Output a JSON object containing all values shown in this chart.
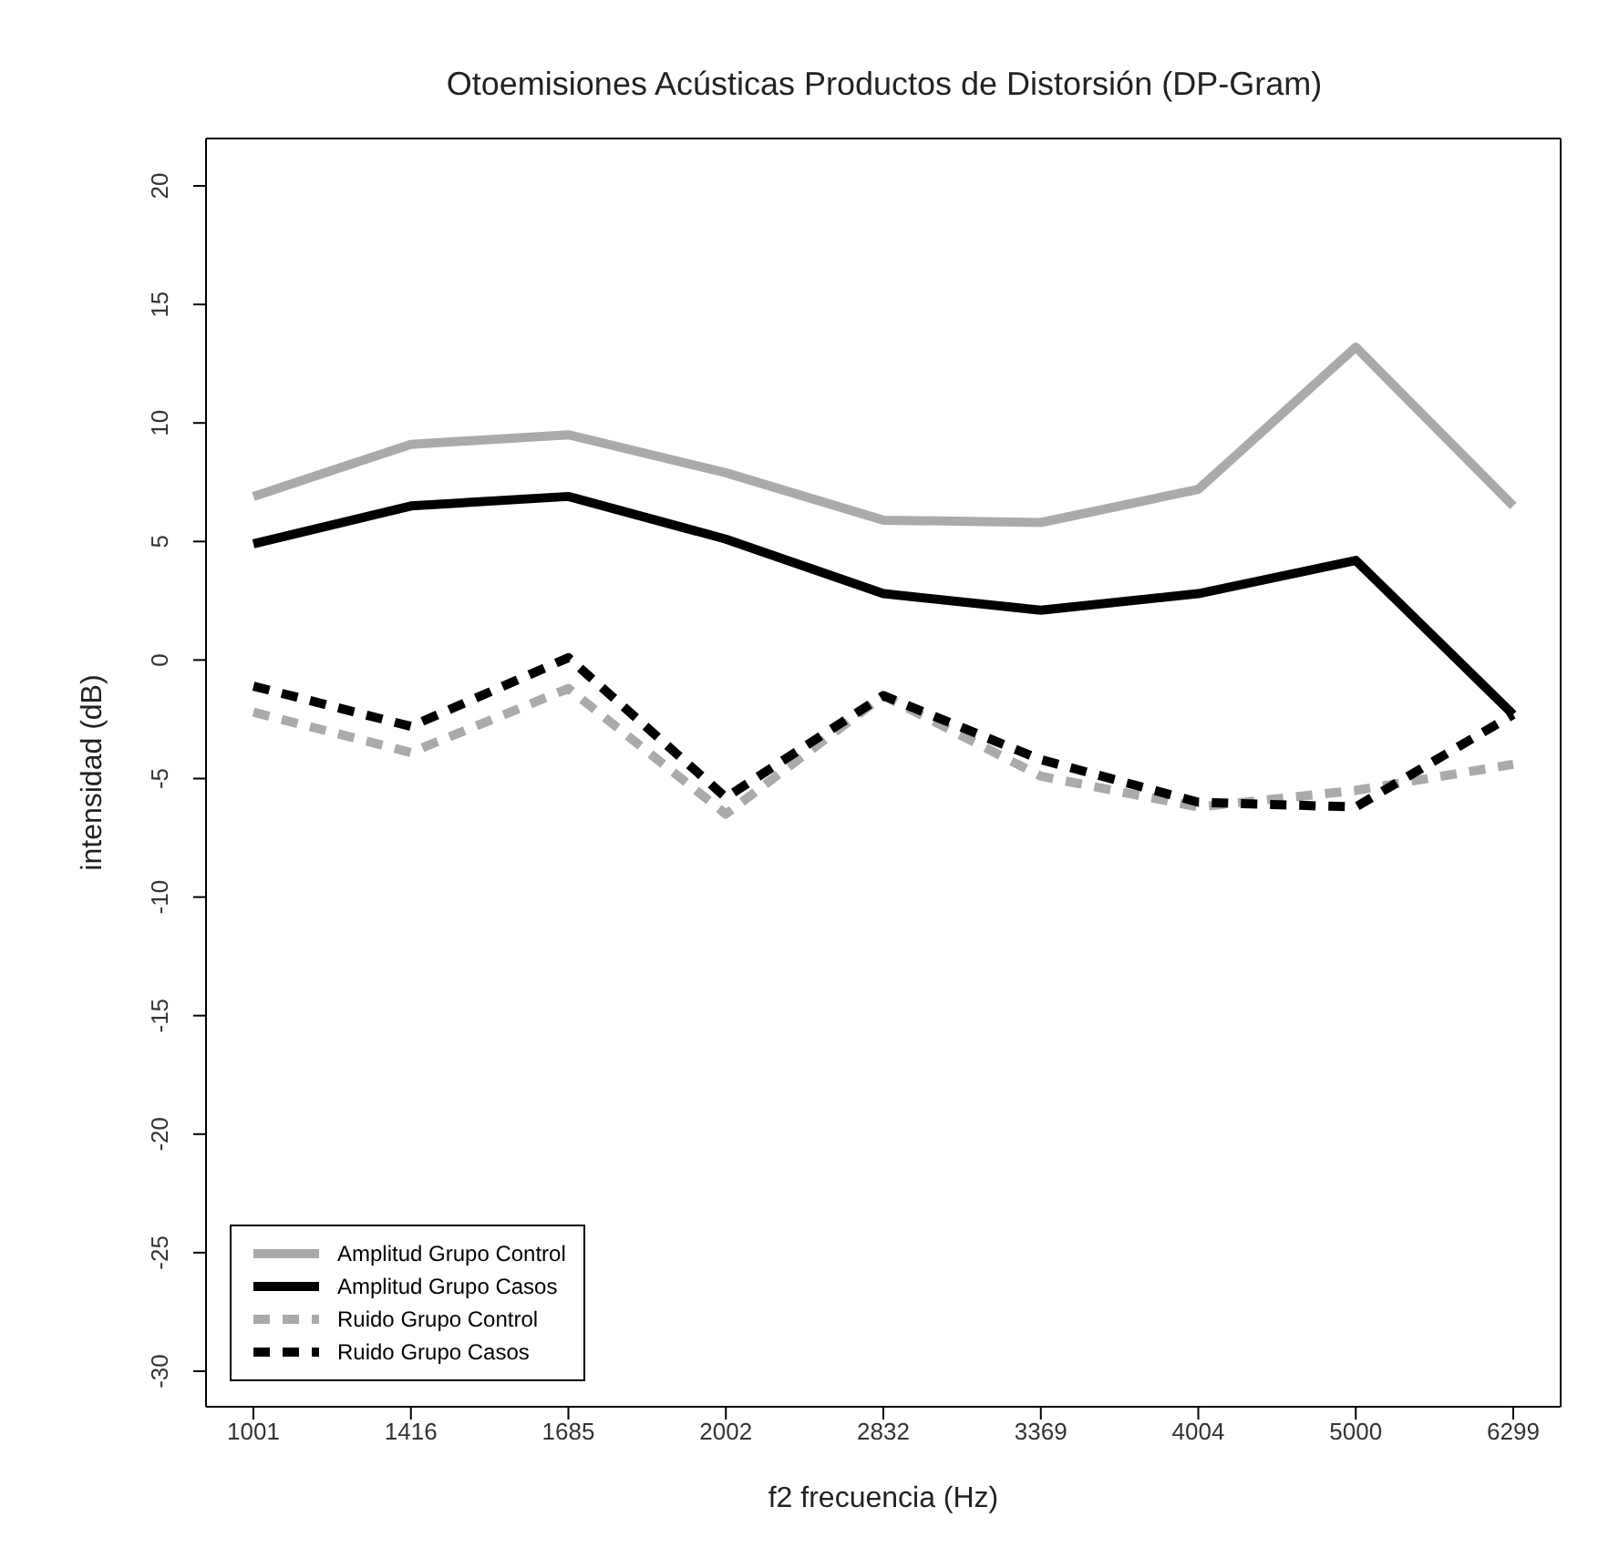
{
  "chart_data": {
    "type": "line",
    "title": "Otoemisiones Acústicas Productos de Distorsión (DP-Gram)",
    "xlabel": "f2 frecuencia  (Hz)",
    "ylabel": "intensidad  (dB)",
    "categories": [
      "1001",
      "1416",
      "1685",
      "2002",
      "2832",
      "3369",
      "4004",
      "5000",
      "6299"
    ],
    "ylim": [
      -31.5,
      22
    ],
    "yticks": [
      -30,
      -25,
      -20,
      -15,
      -10,
      -5,
      0,
      5,
      10,
      15,
      20
    ],
    "grid": false,
    "legend": "bottom left",
    "marker": "none",
    "series": [
      {
        "name": "Amplitud Grupo Control",
        "color": "#aaaaaa",
        "line_style": "solid",
        "values": [
          6.9,
          9.1,
          9.5,
          7.9,
          5.9,
          5.8,
          7.2,
          13.2,
          6.5
        ]
      },
      {
        "name": "Amplitud Grupo Casos",
        "color": "#000000",
        "line_style": "solid",
        "values": [
          4.9,
          6.5,
          6.9,
          5.1,
          2.8,
          2.1,
          2.8,
          4.2,
          -2.3
        ]
      },
      {
        "name": "Ruido Grupo Control",
        "color": "#aaaaaa",
        "line_style": "dashed",
        "values": [
          -2.2,
          -3.9,
          -1.2,
          -6.5,
          -1.5,
          -4.9,
          -6.2,
          -5.5,
          -4.4
        ]
      },
      {
        "name": "Ruido Grupo Casos",
        "color": "#000000",
        "line_style": "dashed",
        "values": [
          -1.1,
          -2.8,
          0.1,
          -5.8,
          -1.5,
          -4.2,
          -6.0,
          -6.2,
          -2.3
        ]
      }
    ]
  }
}
